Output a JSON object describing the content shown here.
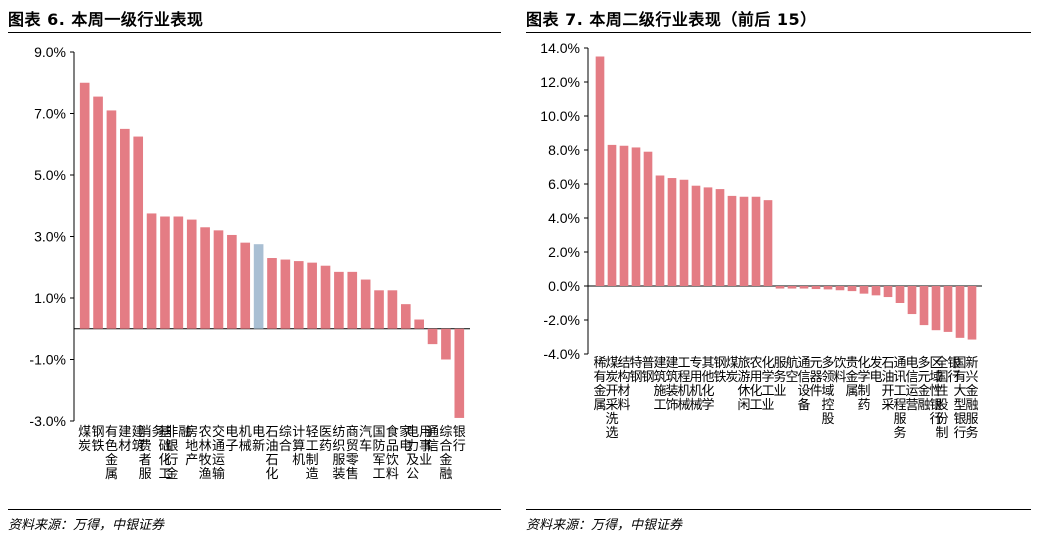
{
  "colors": {
    "bar": "#E47C84",
    "highlight": "#A9BFD3",
    "axis": "#000000"
  },
  "panels": [
    {
      "title": "图表 6. 本周一级行业表现",
      "source": "资料来源：万得，中银证券"
    },
    {
      "title": "图表 7. 本周二级行业表现（前后 15）",
      "source": "资料来源：万得，中银证券"
    }
  ],
  "chart_data": [
    {
      "type": "bar",
      "title": "图表 6. 本周一级行业表现",
      "ylim": [
        -3.0,
        9.0
      ],
      "yticks": [
        "9.0%",
        "7.0%",
        "5.0%",
        "3.0%",
        "1.0%",
        "-1.0%",
        "-3.0%"
      ],
      "yticks_values": [
        9.0,
        7.0,
        5.0,
        3.0,
        1.0,
        -1.0,
        -3.0
      ],
      "highlight_index": 13,
      "categories": [
        "煤炭",
        "钢铁",
        "有色金属",
        "建材",
        "建筑",
        "消费者服务",
        "基础化工",
        "非银行金融",
        "房地产",
        "农林牧渔",
        "交通运输",
        "电子",
        "机械",
        "电新",
        "石油石化",
        "综合",
        "计算机",
        "轻工制造",
        "医药",
        "纺织服装",
        "商贸零售",
        "汽车",
        "国防军工",
        "食品饮料",
        "家电",
        "电力及公用事业",
        "通信",
        "综合金融",
        "银行"
      ],
      "values": [
        8.0,
        7.55,
        7.1,
        6.5,
        6.25,
        3.75,
        3.65,
        3.65,
        3.55,
        3.3,
        3.2,
        3.05,
        2.8,
        2.75,
        2.3,
        2.25,
        2.2,
        2.15,
        2.05,
        1.85,
        1.85,
        1.6,
        1.25,
        1.25,
        0.8,
        0.3,
        -0.5,
        -1.0,
        -2.9
      ]
    },
    {
      "type": "bar",
      "title": "图表 7. 本周二级行业表现（前后 15）",
      "ylim": [
        -4.0,
        14.0
      ],
      "yticks": [
        "14.0%",
        "12.0%",
        "10.0%",
        "8.0%",
        "6.0%",
        "4.0%",
        "2.0%",
        "0.0%",
        "-2.0%",
        "-4.0%"
      ],
      "yticks_values": [
        14.0,
        12.0,
        10.0,
        8.0,
        6.0,
        4.0,
        2.0,
        0.0,
        -2.0,
        -4.0
      ],
      "categories": [
        "稀有金属",
        "煤炭开采洗选",
        "结构材料",
        "特钢",
        "普钢",
        "建筑施工",
        "建筑装饰",
        "工程机械",
        "专用机械",
        "其他化学",
        "钢铁",
        "煤炭",
        "旅游休闲",
        "农用化工",
        "化学工业",
        "服务业",
        "航空",
        "通信设备",
        "元器件",
        "多领域控股",
        "饮料",
        "贵金属",
        "化学制药",
        "发电",
        "石油开采",
        "通讯工程服务",
        "电信运营",
        "多元金融",
        "区域性银行",
        "全国性股份制银行",
        "国有大型银行",
        "新兴金融服务"
      ],
      "values": [
        13.5,
        8.3,
        8.25,
        8.15,
        7.9,
        6.5,
        6.35,
        6.25,
        5.9,
        5.8,
        5.7,
        5.3,
        5.25,
        5.25,
        5.05,
        -0.15,
        -0.15,
        -0.15,
        -0.18,
        -0.2,
        -0.25,
        -0.3,
        -0.45,
        -0.55,
        -0.65,
        -1.0,
        -1.65,
        -2.3,
        -2.6,
        -2.7,
        -3.05,
        -3.15
      ]
    }
  ]
}
